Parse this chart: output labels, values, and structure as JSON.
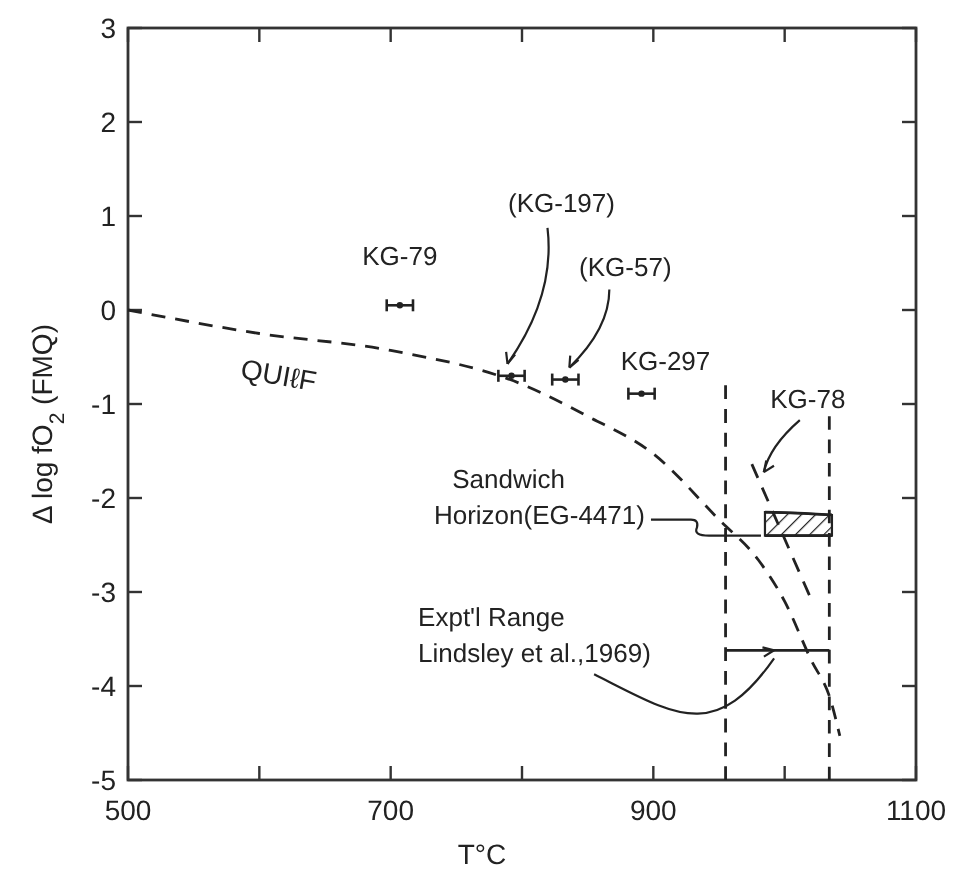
{
  "chart_data": {
    "type": "line",
    "xlabel": "T°C",
    "ylabel": "Δ log fO$_{2}$ (FMQ)",
    "xlim": [
      500,
      1100
    ],
    "xticks": [
      500,
      {
        "value": 600,
        "label": null
      },
      700,
      {
        "value": 800,
        "label": null
      },
      900,
      {
        "value": 1000,
        "label": null
      },
      1100
    ],
    "ylim": [
      -5,
      3
    ],
    "yticks": [
      -5,
      -4,
      -3,
      -2,
      -1,
      0,
      1,
      2,
      3
    ],
    "grid": false,
    "series": [
      {
        "name": "QUIℓF",
        "line_style": "dashed",
        "color": "#222222",
        "x": [
          500,
          600,
          700,
          800,
          850,
          900,
          950,
          980,
          1000,
          1020,
          1035,
          1042
        ],
        "values": [
          0,
          -0.25,
          -0.43,
          -0.79,
          -1.13,
          -1.53,
          -2.23,
          -2.66,
          -3.1,
          -3.72,
          -4.15,
          -4.53
        ]
      },
      {
        "type": "scatter",
        "marker": "circle",
        "color": "#222222",
        "x": [
          707,
          792,
          833,
          891
        ],
        "values": [
          0.05,
          -0.7,
          -0.74,
          -0.89
        ],
        "xerrors": [
          10,
          10,
          10,
          10
        ]
      },
      {
        "type": "line",
        "line_style": "dashed",
        "color": "#222222",
        "x": [
          975,
          1019
        ],
        "values": [
          -1.64,
          -3.04
        ]
      },
      {
        "type": "line",
        "color": "#222222",
        "x": [
          985,
          1010,
          1036
        ],
        "values": [
          -2.15,
          -2.16,
          -2.18
        ]
      },
      {
        "type": "line",
        "color": "#222222",
        "x": [
          985,
          1010,
          1036
        ],
        "values": [
          -2.4,
          -2.4,
          -2.4
        ]
      },
      {
        "type": "line",
        "line_style": "dashed",
        "color": "#222222",
        "x": [
          955,
          955
        ],
        "values": [
          -0.8,
          -5
        ]
      },
      {
        "type": "line",
        "line_style": "dashed",
        "color": "#222222",
        "x": [
          1034,
          1034
        ],
        "values": [
          -1.13,
          -5
        ]
      },
      {
        "type": "line",
        "line_style": "solid",
        "color": "#222222",
        "x": [
          955,
          1034
        ],
        "values": [
          -3.62,
          -3.62
        ]
      }
    ],
    "annotations": [
      {
        "text": "KG-79",
        "x": 707,
        "y": 0.05
      },
      {
        "text": "(KG-197)",
        "x": 792,
        "y": -0.7
      },
      {
        "text": "(KG-57)",
        "x": 833,
        "y": -0.74
      },
      {
        "text": "KG-297",
        "x": 891,
        "y": -0.89
      },
      {
        "text": "KG-78",
        "x": 975,
        "y": -1.64
      },
      {
        "text": "Sandwich\nHorizon(EG-4471)",
        "x": 985,
        "y": -2.4
      },
      {
        "text": "Expt'l Range\nLindsley et al.,1969)",
        "x": 995,
        "y": -3.62
      }
    ]
  }
}
